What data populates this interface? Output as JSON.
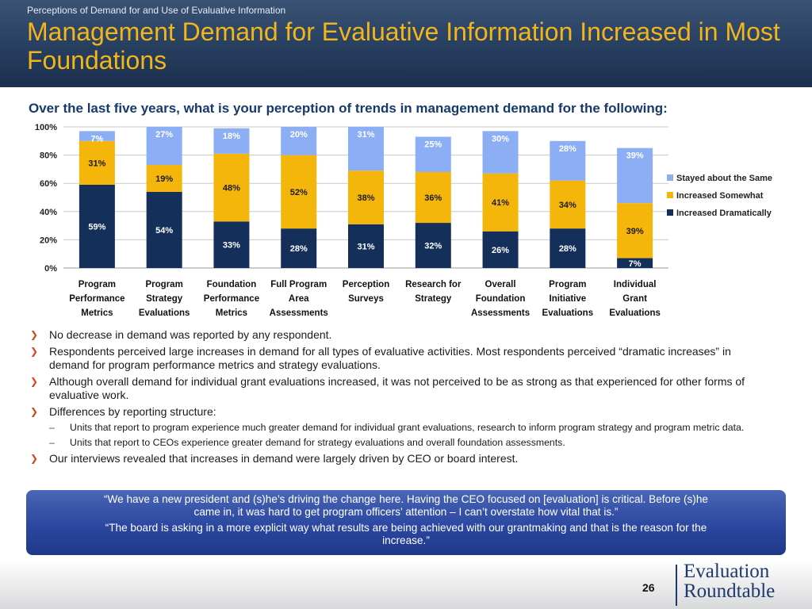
{
  "header": {
    "kicker": "Perceptions of Demand for and Use of Evaluative Information",
    "title": "Management Demand for Evaluative Information Increased in Most Foundations"
  },
  "question": "Over the last five years, what is your perception of trends in management demand for the following:",
  "chart_data": {
    "type": "bar",
    "stacked": true,
    "categories": [
      [
        "Program",
        "Performance",
        "Metrics"
      ],
      [
        "Program",
        "Strategy",
        "Evaluations"
      ],
      [
        "Foundation",
        "Performance",
        "Metrics"
      ],
      [
        "Full Program",
        "Area",
        "Assessments"
      ],
      [
        "Perception",
        "Surveys"
      ],
      [
        "Research for",
        "Strategy"
      ],
      [
        "Overall",
        "Foundation",
        "Assessments"
      ],
      [
        "Program",
        "Initiative",
        "Evaluations"
      ],
      [
        "Individual",
        "Grant",
        "Evaluations"
      ]
    ],
    "series": [
      {
        "name": "Increased Dramatically",
        "color": "#14305a",
        "values": [
          59,
          54,
          33,
          28,
          31,
          32,
          26,
          28,
          7
        ]
      },
      {
        "name": "Increased Somewhat",
        "color": "#f5b60b",
        "values": [
          31,
          19,
          48,
          52,
          38,
          36,
          41,
          34,
          39
        ]
      },
      {
        "name": "Stayed about the Same",
        "color": "#8caef5",
        "values": [
          7,
          27,
          18,
          20,
          31,
          25,
          30,
          28,
          39
        ]
      }
    ],
    "ylim": [
      0,
      100
    ],
    "yticks": [
      "0%",
      "20%",
      "40%",
      "60%",
      "80%",
      "100%"
    ],
    "legend_position": "right",
    "grid": true
  },
  "bullets": [
    {
      "text": "No decrease in demand was reported by any respondent."
    },
    {
      "text": "Respondents perceived large increases in demand for all types of evaluative activities. Most respondents perceived “dramatic increases” in demand for program performance metrics and strategy evaluations."
    },
    {
      "text": "Although overall demand for individual grant evaluations increased, it was not perceived to be as strong as that experienced for other forms of evaluative work."
    },
    {
      "text": "Differences by reporting structure:",
      "subs": [
        "Units that report to program experience much greater demand for individual grant evaluations, research to inform program strategy and program metric data.",
        "Units that report to CEOs experience greater demand for strategy evaluations and overall foundation assessments."
      ]
    },
    {
      "text": "Our interviews revealed that increases in demand were largely driven by CEO or board interest."
    }
  ],
  "quotes": [
    "“We have a new president and (s)he’s driving the change here. Having the CEO focused on [evaluation] is critical. Before (s)he came in, it was hard to get program officers’ attention – I can’t overstate how vital that is.”",
    "“The board is asking in a more explicit way what results are being achieved with our grantmaking and that is the reason for the increase.”"
  ],
  "footer": {
    "page_number": "26",
    "logo_line1": "Evaluation",
    "logo_line2": "Roundtable"
  }
}
